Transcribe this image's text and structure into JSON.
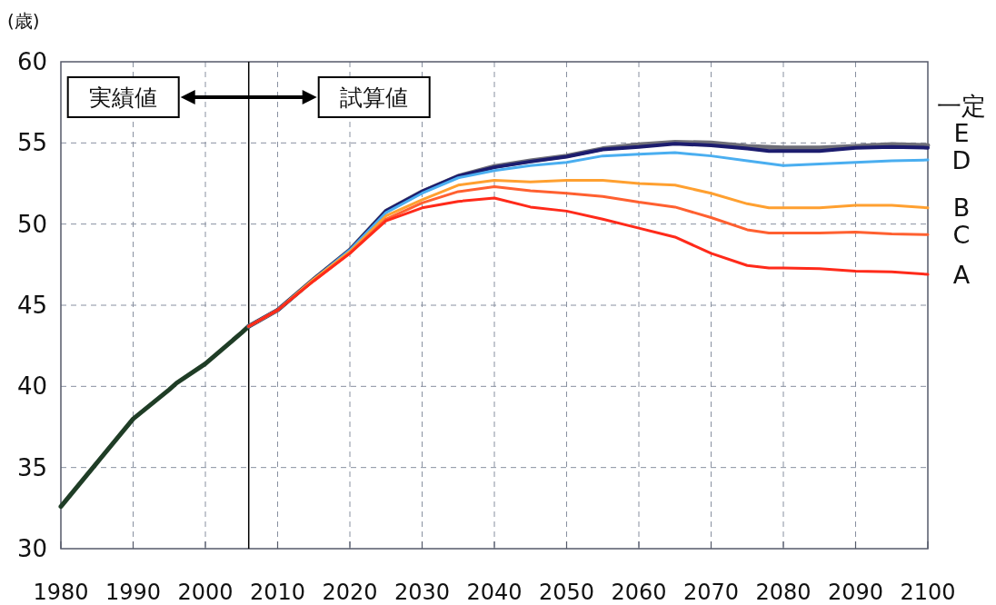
{
  "chart_data": {
    "type": "line",
    "ylabel": "(歳)",
    "xlim": [
      1980,
      2100
    ],
    "xticks": [
      1980,
      1990,
      2000,
      2010,
      2020,
      2030,
      2040,
      2050,
      2060,
      2070,
      2080,
      2090,
      2100
    ],
    "ylim": [
      30,
      60
    ],
    "yticks": [
      30,
      35,
      40,
      45,
      50,
      55,
      60
    ],
    "grid": true,
    "line_style": "solid",
    "ref_lines": [
      {
        "axis": "x",
        "value": 2006,
        "color": "#000000"
      }
    ],
    "annotations": [
      "実績値",
      "試算値"
    ],
    "series": [
      {
        "color": "#1f3d26",
        "x": [
          1980,
          1985,
          1990,
          1995,
          1996,
          2000,
          2005,
          2006
        ],
        "values": [
          32.6,
          35.3,
          38.0,
          39.8,
          40.2,
          41.4,
          43.3,
          43.7
        ]
      },
      {
        "name": "一定",
        "color": "#6e6e78",
        "x": [
          2006,
          2010,
          2015,
          2020,
          2025,
          2030,
          2035,
          2040,
          2045,
          2050,
          2055,
          2060,
          2065,
          2070,
          2075,
          2080,
          2085,
          2090,
          2095,
          2100
        ],
        "values": [
          43.7,
          44.7,
          46.6,
          48.4,
          50.8,
          52.0,
          52.95,
          53.55,
          53.9,
          54.2,
          54.65,
          54.9,
          55.05,
          55.0,
          54.8,
          54.7,
          54.7,
          54.8,
          54.9,
          54.85
        ]
      },
      {
        "name": "E",
        "color": "#1c1c6e",
        "x": [
          2006,
          2010,
          2015,
          2020,
          2025,
          2030,
          2035,
          2040,
          2045,
          2050,
          2055,
          2060,
          2065,
          2070,
          2075,
          2078,
          2080,
          2085,
          2090,
          2095,
          2100
        ],
        "values": [
          43.7,
          44.7,
          46.6,
          48.4,
          50.8,
          52.0,
          52.95,
          53.5,
          53.85,
          54.15,
          54.6,
          54.75,
          54.95,
          54.85,
          54.65,
          54.5,
          54.5,
          54.5,
          54.7,
          54.75,
          54.7
        ]
      },
      {
        "name": "D",
        "color": "#4aaef0",
        "x": [
          2006,
          2010,
          2015,
          2020,
          2025,
          2030,
          2035,
          2040,
          2045,
          2050,
          2055,
          2060,
          2065,
          2070,
          2075,
          2080,
          2085,
          2090,
          2095,
          2100
        ],
        "values": [
          43.7,
          44.7,
          46.6,
          48.4,
          50.7,
          51.9,
          52.85,
          53.3,
          53.6,
          53.8,
          54.2,
          54.3,
          54.4,
          54.2,
          53.9,
          53.6,
          53.7,
          53.8,
          53.9,
          53.95
        ]
      },
      {
        "name": "B",
        "color": "#ffa030",
        "x": [
          2006,
          2010,
          2015,
          2020,
          2025,
          2030,
          2035,
          2040,
          2045,
          2050,
          2055,
          2060,
          2065,
          2070,
          2075,
          2078,
          2080,
          2085,
          2090,
          2095,
          2100
        ],
        "values": [
          43.7,
          44.7,
          46.6,
          48.3,
          50.5,
          51.5,
          52.4,
          52.7,
          52.6,
          52.7,
          52.7,
          52.5,
          52.4,
          51.9,
          51.25,
          51.0,
          51.0,
          51.0,
          51.15,
          51.15,
          51.0
        ]
      },
      {
        "name": "C",
        "color": "#ff6030",
        "x": [
          2006,
          2010,
          2015,
          2020,
          2025,
          2030,
          2035,
          2040,
          2045,
          2050,
          2055,
          2060,
          2065,
          2070,
          2075,
          2078,
          2080,
          2085,
          2090,
          2095,
          2100
        ],
        "values": [
          43.7,
          44.7,
          46.5,
          48.2,
          50.3,
          51.3,
          52.0,
          52.3,
          52.05,
          51.9,
          51.7,
          51.35,
          51.05,
          50.4,
          49.65,
          49.45,
          49.45,
          49.45,
          49.5,
          49.4,
          49.35
        ]
      },
      {
        "name": "A",
        "color": "#ff2a1a",
        "x": [
          2006,
          2010,
          2015,
          2020,
          2025,
          2030,
          2035,
          2040,
          2045,
          2050,
          2055,
          2060,
          2065,
          2070,
          2075,
          2078,
          2080,
          2085,
          2090,
          2095,
          2100
        ],
        "values": [
          43.7,
          44.7,
          46.5,
          48.2,
          50.2,
          51.0,
          51.4,
          51.6,
          51.05,
          50.8,
          50.3,
          49.75,
          49.2,
          48.2,
          47.45,
          47.3,
          47.3,
          47.25,
          47.1,
          47.05,
          46.9
        ]
      }
    ]
  }
}
